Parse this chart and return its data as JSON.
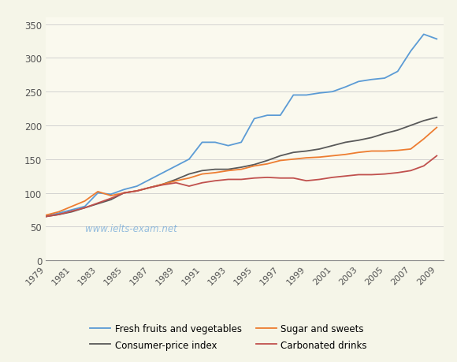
{
  "years": [
    1979,
    1980,
    1981,
    1982,
    1983,
    1984,
    1985,
    1986,
    1987,
    1988,
    1989,
    1990,
    1991,
    1992,
    1993,
    1994,
    1995,
    1996,
    1997,
    1998,
    1999,
    2000,
    2001,
    2002,
    2003,
    2004,
    2005,
    2006,
    2007,
    2008,
    2009
  ],
  "fresh_fruits_veg": [
    65,
    70,
    75,
    80,
    100,
    98,
    105,
    110,
    120,
    130,
    140,
    150,
    175,
    175,
    170,
    175,
    210,
    215,
    215,
    245,
    245,
    248,
    250,
    257,
    265,
    268,
    270,
    280,
    310,
    335,
    328
  ],
  "consumer_price_index": [
    65,
    68,
    72,
    78,
    84,
    90,
    100,
    103,
    108,
    113,
    120,
    128,
    133,
    135,
    135,
    138,
    142,
    148,
    155,
    160,
    162,
    165,
    170,
    175,
    178,
    182,
    188,
    193,
    200,
    207,
    212
  ],
  "sugar_sweets": [
    67,
    72,
    80,
    88,
    102,
    96,
    100,
    103,
    108,
    113,
    118,
    122,
    128,
    130,
    133,
    135,
    140,
    143,
    148,
    150,
    152,
    153,
    155,
    157,
    160,
    162,
    162,
    163,
    165,
    180,
    197
  ],
  "carbonated_drinks": [
    65,
    68,
    73,
    78,
    85,
    92,
    100,
    103,
    108,
    112,
    115,
    110,
    115,
    118,
    120,
    120,
    122,
    123,
    122,
    122,
    118,
    120,
    123,
    125,
    127,
    127,
    128,
    130,
    133,
    140,
    155
  ],
  "fresh_color": "#5B9BD5",
  "cpi_color": "#595959",
  "sugar_color": "#ED7D31",
  "carb_color": "#C0504D",
  "bg_color": "#F5F5E8",
  "plot_bg_color": "#FAF9EE",
  "watermark": "www.ielts-exam.net",
  "ylim": [
    0,
    360
  ],
  "yticks": [
    0,
    50,
    100,
    150,
    200,
    250,
    300,
    350
  ],
  "xtick_labels": [
    "1979",
    "1981",
    "1983",
    "1985",
    "1987",
    "1989",
    "1991",
    "1993",
    "1995",
    "1997",
    "1999",
    "2001",
    "2003",
    "2005",
    "2007",
    "2009"
  ],
  "legend_labels": [
    "Fresh fruits and vegetables",
    "Consumer-price index",
    "Sugar and sweets",
    "Carbonated drinks"
  ]
}
